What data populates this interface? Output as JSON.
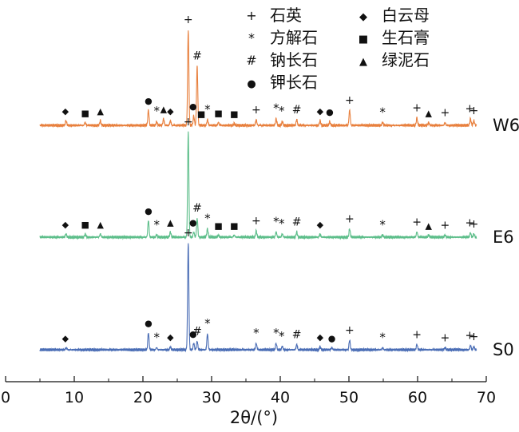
{
  "chart_data": {
    "type": "line",
    "title": "",
    "xlabel": "2θ/(°)",
    "ylabel": "",
    "xlim": [
      0,
      70
    ],
    "xticks": [
      "0",
      "10",
      "20",
      "30",
      "40",
      "50",
      "60",
      "70"
    ],
    "grid": false,
    "legend_position": "top",
    "legend": [
      {
        "symbol": "+",
        "name": "石英"
      },
      {
        "symbol": "*",
        "name": "方解石"
      },
      {
        "symbol": "#",
        "name": "钠长石"
      },
      {
        "symbol": "●",
        "name": "钾长石"
      },
      {
        "symbol": "◆",
        "name": "白云母"
      },
      {
        "symbol": "■",
        "name": "生石膏"
      },
      {
        "symbol": "▲",
        "name": "绿泥石"
      }
    ],
    "series": [
      {
        "name": "W6",
        "color": "#E8803E",
        "peaks": [
          {
            "x": 8.8,
            "h": 0.05
          },
          {
            "x": 11.6,
            "h": 0.03
          },
          {
            "x": 13.8,
            "h": 0.05
          },
          {
            "x": 20.8,
            "h": 0.16
          },
          {
            "x": 22.0,
            "h": 0.04
          },
          {
            "x": 23.0,
            "h": 0.07
          },
          {
            "x": 24.0,
            "h": 0.05
          },
          {
            "x": 26.6,
            "h": 1.0
          },
          {
            "x": 27.4,
            "h": 0.1
          },
          {
            "x": 27.9,
            "h": 0.62
          },
          {
            "x": 29.4,
            "h": 0.06
          },
          {
            "x": 31.0,
            "h": 0.03
          },
          {
            "x": 33.3,
            "h": 0.02
          },
          {
            "x": 36.5,
            "h": 0.06
          },
          {
            "x": 39.4,
            "h": 0.07
          },
          {
            "x": 40.3,
            "h": 0.04
          },
          {
            "x": 42.4,
            "h": 0.06
          },
          {
            "x": 45.8,
            "h": 0.05
          },
          {
            "x": 47.2,
            "h": 0.04
          },
          {
            "x": 50.1,
            "h": 0.16
          },
          {
            "x": 54.9,
            "h": 0.03
          },
          {
            "x": 59.9,
            "h": 0.08
          },
          {
            "x": 61.6,
            "h": 0.03
          },
          {
            "x": 64.0,
            "h": 0.03
          },
          {
            "x": 67.7,
            "h": 0.07
          },
          {
            "x": 68.2,
            "h": 0.05
          }
        ],
        "markers": [
          {
            "x": 8.7,
            "s": "◆"
          },
          {
            "x": 11.6,
            "s": "■"
          },
          {
            "x": 13.8,
            "s": "▲"
          },
          {
            "x": 20.8,
            "s": "●"
          },
          {
            "x": 22.0,
            "s": "*"
          },
          {
            "x": 23.0,
            "s": "▲"
          },
          {
            "x": 24.0,
            "s": "◆"
          },
          {
            "x": 26.6,
            "s": "+"
          },
          {
            "x": 27.3,
            "s": "●"
          },
          {
            "x": 27.9,
            "s": "#"
          },
          {
            "x": 28.5,
            "s": "■"
          },
          {
            "x": 29.4,
            "s": "*"
          },
          {
            "x": 31.0,
            "s": "■"
          },
          {
            "x": 33.3,
            "s": "■"
          },
          {
            "x": 36.5,
            "s": "+"
          },
          {
            "x": 39.4,
            "s": "*"
          },
          {
            "x": 40.2,
            "s": "*"
          },
          {
            "x": 42.4,
            "s": "#"
          },
          {
            "x": 45.8,
            "s": "◆"
          },
          {
            "x": 47.2,
            "s": "●"
          },
          {
            "x": 50.1,
            "s": "+"
          },
          {
            "x": 54.9,
            "s": "*"
          },
          {
            "x": 59.9,
            "s": "+"
          },
          {
            "x": 61.6,
            "s": "▲"
          },
          {
            "x": 64.0,
            "s": "+"
          },
          {
            "x": 67.6,
            "s": "+"
          },
          {
            "x": 68.2,
            "s": "+"
          }
        ]
      },
      {
        "name": "E6",
        "color": "#5DBE8A",
        "peaks": [
          {
            "x": 8.8,
            "h": 0.03
          },
          {
            "x": 11.6,
            "h": 0.03
          },
          {
            "x": 13.8,
            "h": 0.03
          },
          {
            "x": 20.8,
            "h": 0.16
          },
          {
            "x": 22.0,
            "h": 0.02
          },
          {
            "x": 24.0,
            "h": 0.05
          },
          {
            "x": 26.6,
            "h": 1.0
          },
          {
            "x": 27.4,
            "h": 0.05
          },
          {
            "x": 27.9,
            "h": 0.18
          },
          {
            "x": 29.4,
            "h": 0.08
          },
          {
            "x": 31.0,
            "h": 0.02
          },
          {
            "x": 33.3,
            "h": 0.02
          },
          {
            "x": 36.5,
            "h": 0.06
          },
          {
            "x": 39.4,
            "h": 0.05
          },
          {
            "x": 40.3,
            "h": 0.03
          },
          {
            "x": 42.4,
            "h": 0.05
          },
          {
            "x": 45.8,
            "h": 0.03
          },
          {
            "x": 50.1,
            "h": 0.08
          },
          {
            "x": 54.9,
            "h": 0.02
          },
          {
            "x": 59.9,
            "h": 0.05
          },
          {
            "x": 61.6,
            "h": 0.02
          },
          {
            "x": 64.0,
            "h": 0.02
          },
          {
            "x": 67.7,
            "h": 0.04
          },
          {
            "x": 68.2,
            "h": 0.03
          }
        ],
        "markers": [
          {
            "x": 8.7,
            "s": "◆"
          },
          {
            "x": 11.6,
            "s": "■"
          },
          {
            "x": 13.8,
            "s": "▲"
          },
          {
            "x": 20.8,
            "s": "●"
          },
          {
            "x": 22.0,
            "s": "*"
          },
          {
            "x": 24.0,
            "s": "▲"
          },
          {
            "x": 26.6,
            "s": "+"
          },
          {
            "x": 27.3,
            "s": "●"
          },
          {
            "x": 27.9,
            "s": "#"
          },
          {
            "x": 29.4,
            "s": "*"
          },
          {
            "x": 31.0,
            "s": "■"
          },
          {
            "x": 33.3,
            "s": "■"
          },
          {
            "x": 36.5,
            "s": "+"
          },
          {
            "x": 39.4,
            "s": "*"
          },
          {
            "x": 40.2,
            "s": "*"
          },
          {
            "x": 42.4,
            "s": "#"
          },
          {
            "x": 45.8,
            "s": "◆"
          },
          {
            "x": 50.1,
            "s": "+"
          },
          {
            "x": 54.9,
            "s": "*"
          },
          {
            "x": 59.9,
            "s": "+"
          },
          {
            "x": 61.6,
            "s": "▲"
          },
          {
            "x": 64.0,
            "s": "+"
          },
          {
            "x": 67.6,
            "s": "+"
          },
          {
            "x": 68.2,
            "s": "+"
          }
        ]
      },
      {
        "name": "S0",
        "color": "#4A6DB5",
        "peaks": [
          {
            "x": 8.8,
            "h": 0.02
          },
          {
            "x": 20.8,
            "h": 0.16
          },
          {
            "x": 22.0,
            "h": 0.02
          },
          {
            "x": 24.0,
            "h": 0.03
          },
          {
            "x": 26.6,
            "h": 1.0
          },
          {
            "x": 27.4,
            "h": 0.06
          },
          {
            "x": 27.9,
            "h": 0.08
          },
          {
            "x": 29.4,
            "h": 0.15
          },
          {
            "x": 36.5,
            "h": 0.06
          },
          {
            "x": 39.4,
            "h": 0.06
          },
          {
            "x": 40.3,
            "h": 0.03
          },
          {
            "x": 42.4,
            "h": 0.05
          },
          {
            "x": 45.8,
            "h": 0.03
          },
          {
            "x": 47.5,
            "h": 0.02
          },
          {
            "x": 50.1,
            "h": 0.09
          },
          {
            "x": 54.9,
            "h": 0.02
          },
          {
            "x": 59.9,
            "h": 0.05
          },
          {
            "x": 64.0,
            "h": 0.02
          },
          {
            "x": 67.7,
            "h": 0.04
          },
          {
            "x": 68.2,
            "h": 0.03
          }
        ],
        "markers": [
          {
            "x": 8.7,
            "s": "◆"
          },
          {
            "x": 20.8,
            "s": "●"
          },
          {
            "x": 22.0,
            "s": "*"
          },
          {
            "x": 24.0,
            "s": "◆"
          },
          {
            "x": 26.6,
            "s": "+"
          },
          {
            "x": 27.3,
            "s": "●"
          },
          {
            "x": 27.9,
            "s": "#"
          },
          {
            "x": 29.4,
            "s": "*"
          },
          {
            "x": 36.5,
            "s": "*"
          },
          {
            "x": 39.4,
            "s": "*"
          },
          {
            "x": 40.2,
            "s": "*"
          },
          {
            "x": 42.4,
            "s": "#"
          },
          {
            "x": 45.8,
            "s": "◆"
          },
          {
            "x": 47.5,
            "s": "●"
          },
          {
            "x": 50.1,
            "s": "+"
          },
          {
            "x": 54.9,
            "s": "*"
          },
          {
            "x": 59.9,
            "s": "+"
          },
          {
            "x": 64.0,
            "s": "+"
          },
          {
            "x": 67.6,
            "s": "+"
          },
          {
            "x": 68.2,
            "s": "+"
          }
        ]
      }
    ]
  }
}
